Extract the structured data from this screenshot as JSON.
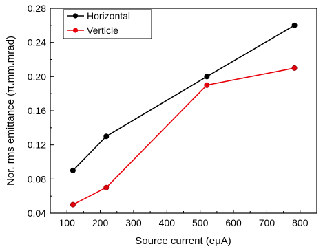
{
  "chart_data": {
    "type": "line",
    "title": "",
    "xlabel": "Source current (eμA)",
    "ylabel": "Nor. rms emittance (π.mm.mrad)",
    "xlim": [
      50,
      850
    ],
    "ylim": [
      0.04,
      0.28
    ],
    "x_ticks": [
      "100",
      "200",
      "300",
      "400",
      "500",
      "600",
      "700",
      "800"
    ],
    "y_ticks": [
      "0.04",
      "0.08",
      "0.12",
      "0.16",
      "0.20",
      "0.24",
      "0.28"
    ],
    "grid": false,
    "legend_position": "top-left",
    "series": [
      {
        "name": "Horizontal",
        "color": "#000000",
        "marker": "circle",
        "x": [
          118,
          218,
          520,
          783
        ],
        "y": [
          0.09,
          0.13,
          0.2,
          0.26
        ]
      },
      {
        "name": "Verticle",
        "color": "#e8000b",
        "marker": "circle",
        "x": [
          118,
          218,
          520,
          783
        ],
        "y": [
          0.05,
          0.07,
          0.19,
          0.21
        ]
      }
    ]
  }
}
